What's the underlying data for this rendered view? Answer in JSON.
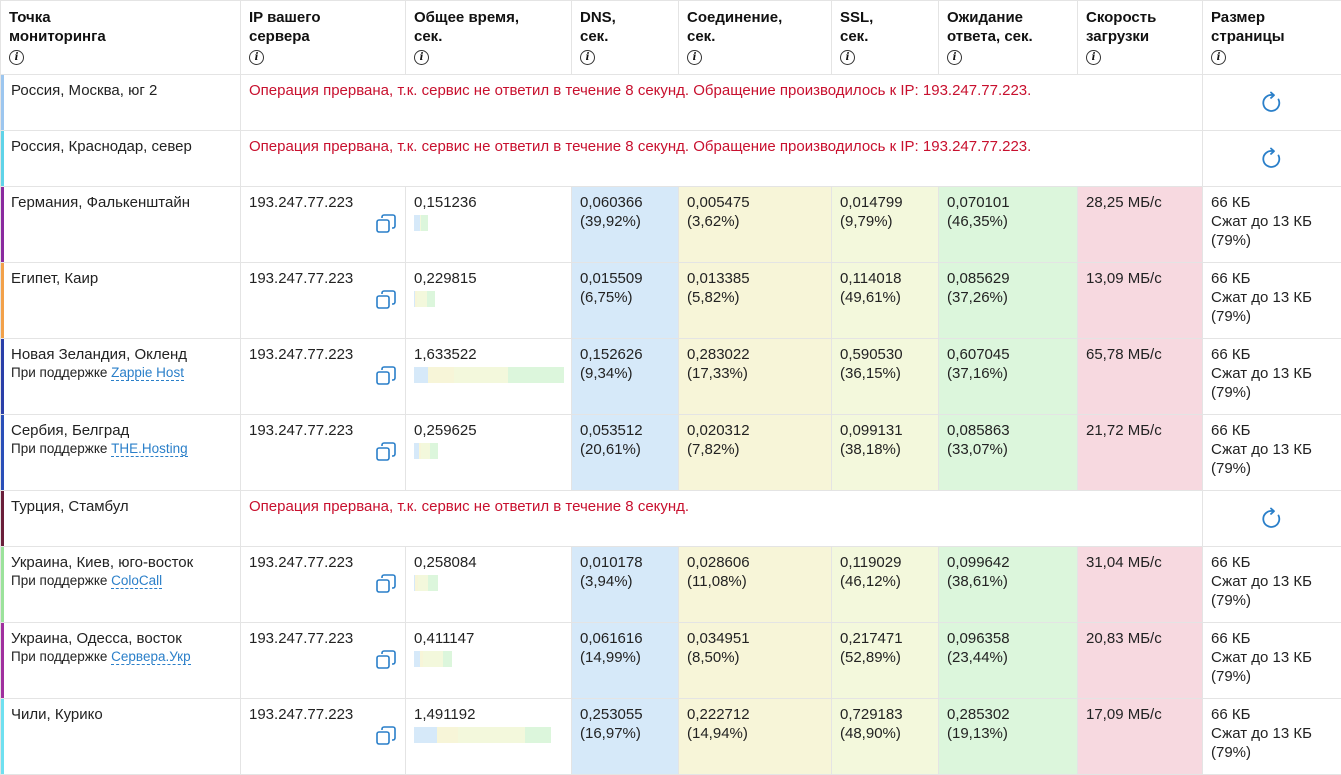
{
  "headers": {
    "location": {
      "line1": "Точка",
      "line2": "мониторинга"
    },
    "ip": {
      "line1": "IP вашего",
      "line2": "сервера"
    },
    "total": {
      "line1": "Общее время,",
      "line2": "сек."
    },
    "dns": {
      "line1": "DNS,",
      "line2": "сек."
    },
    "connect": {
      "line1": "Соединение,",
      "line2": "сек."
    },
    "ssl": {
      "line1": "SSL,",
      "line2": "сек."
    },
    "wait": {
      "line1": "Ожидание",
      "line2": "ответа, сек."
    },
    "speed": {
      "line1": "Скорость",
      "line2": "загрузки"
    },
    "size": {
      "line1": "Размер",
      "line2": "страницы"
    },
    "info_icon": "i"
  },
  "sponsor_prefix": "При поддержке ",
  "colors": {
    "dns": "#d6e9f9",
    "connect": "#f7f5d8",
    "ssl": "#f3f8dc",
    "wait": "#dcf6dc",
    "speed": "#f7d9e0",
    "error": "#c8102e",
    "link": "#2a7fc9"
  },
  "rows": [
    {
      "location": "Россия, Москва, юг 2",
      "accent": "#9cc6ef",
      "error": "Операция прервана, т.к. сервис не ответил в течение 8 секунд. Обращение производилось к IP: 193.247.77.223."
    },
    {
      "location": "Россия, Краснодар, север",
      "accent": "#5fd3e8",
      "error": "Операция прервана, т.к. сервис не ответил в течение 8 секунд. Обращение производилось к IP: 193.247.77.223."
    },
    {
      "location": "Германия, Фалькенштайн",
      "accent": "#8a2a9e",
      "ip": "193.247.77.223",
      "total": "0,151236",
      "dns": "0,060366",
      "dns_pct": "(39,92%)",
      "con": "0,005475",
      "con_pct": "(3,62%)",
      "ssl": "0,014799",
      "ssl_pct": "(9,79%)",
      "wait": "0,070101",
      "wait_pct": "(46,35%)",
      "speed": "28,25 МБ/с",
      "size": "66 КБ",
      "compressed": "Сжат до 13 КБ",
      "ratio": "(79%)"
    },
    {
      "location": "Египет, Каир",
      "accent": "#f2a14a",
      "ip": "193.247.77.223",
      "total": "0,229815",
      "dns": "0,015509",
      "dns_pct": "(6,75%)",
      "con": "0,013385",
      "con_pct": "(5,82%)",
      "ssl": "0,114018",
      "ssl_pct": "(49,61%)",
      "wait": "0,085629",
      "wait_pct": "(37,26%)",
      "speed": "13,09 МБ/с",
      "size": "66 КБ",
      "compressed": "Сжат до 13 КБ",
      "ratio": "(79%)"
    },
    {
      "location": "Новая Зеландия, Окленд",
      "accent": "#2a3fa8",
      "sponsor": "Zappie Host",
      "ip": "193.247.77.223",
      "total": "1,633522",
      "dns": "0,152626",
      "dns_pct": "(9,34%)",
      "con": "0,283022",
      "con_pct": "(17,33%)",
      "ssl": "0,590530",
      "ssl_pct": "(36,15%)",
      "wait": "0,607045",
      "wait_pct": "(37,16%)",
      "speed": "65,78 МБ/с",
      "size": "66 КБ",
      "compressed": "Сжат до 13 КБ",
      "ratio": "(79%)"
    },
    {
      "location": "Сербия, Белград",
      "accent": "#2a4fb8",
      "sponsor": "THE.Hosting",
      "ip": "193.247.77.223",
      "total": "0,259625",
      "dns": "0,053512",
      "dns_pct": "(20,61%)",
      "con": "0,020312",
      "con_pct": "(7,82%)",
      "ssl": "0,099131",
      "ssl_pct": "(38,18%)",
      "wait": "0,085863",
      "wait_pct": "(33,07%)",
      "speed": "21,72 МБ/с",
      "size": "66 КБ",
      "compressed": "Сжат до 13 КБ",
      "ratio": "(79%)"
    },
    {
      "location": "Турция, Стамбул",
      "accent": "#6a1f3a",
      "error": "Операция прервана, т.к. сервис не ответил в течение 8 секунд."
    },
    {
      "location": "Украина, Киев, юго-восток",
      "accent": "#9be29b",
      "sponsor": "ColoCall",
      "ip": "193.247.77.223",
      "total": "0,258084",
      "dns": "0,010178",
      "dns_pct": "(3,94%)",
      "con": "0,028606",
      "con_pct": "(11,08%)",
      "ssl": "0,119029",
      "ssl_pct": "(46,12%)",
      "wait": "0,099642",
      "wait_pct": "(38,61%)",
      "speed": "31,04 МБ/с",
      "size": "66 КБ",
      "compressed": "Сжат до 13 КБ",
      "ratio": "(79%)"
    },
    {
      "location": "Украина, Одесса, восток",
      "accent": "#a0309e",
      "sponsor": "Сервера.Укр",
      "ip": "193.247.77.223",
      "total": "0,411147",
      "dns": "0,061616",
      "dns_pct": "(14,99%)",
      "con": "0,034951",
      "con_pct": "(8,50%)",
      "ssl": "0,217471",
      "ssl_pct": "(52,89%)",
      "wait": "0,096358",
      "wait_pct": "(23,44%)",
      "speed": "20,83 МБ/с",
      "size": "66 КБ",
      "compressed": "Сжат до 13 КБ",
      "ratio": "(79%)"
    },
    {
      "location": "Чили, Курико",
      "accent": "#6fe0f0",
      "ip": "193.247.77.223",
      "total": "1,491192",
      "dns": "0,253055",
      "dns_pct": "(16,97%)",
      "con": "0,222712",
      "con_pct": "(14,94%)",
      "ssl": "0,729183",
      "ssl_pct": "(48,90%)",
      "wait": "0,285302",
      "wait_pct": "(19,13%)",
      "speed": "17,09 МБ/с",
      "size": "66 КБ",
      "compressed": "Сжат до 13 КБ",
      "ratio": "(79%)"
    }
  ]
}
